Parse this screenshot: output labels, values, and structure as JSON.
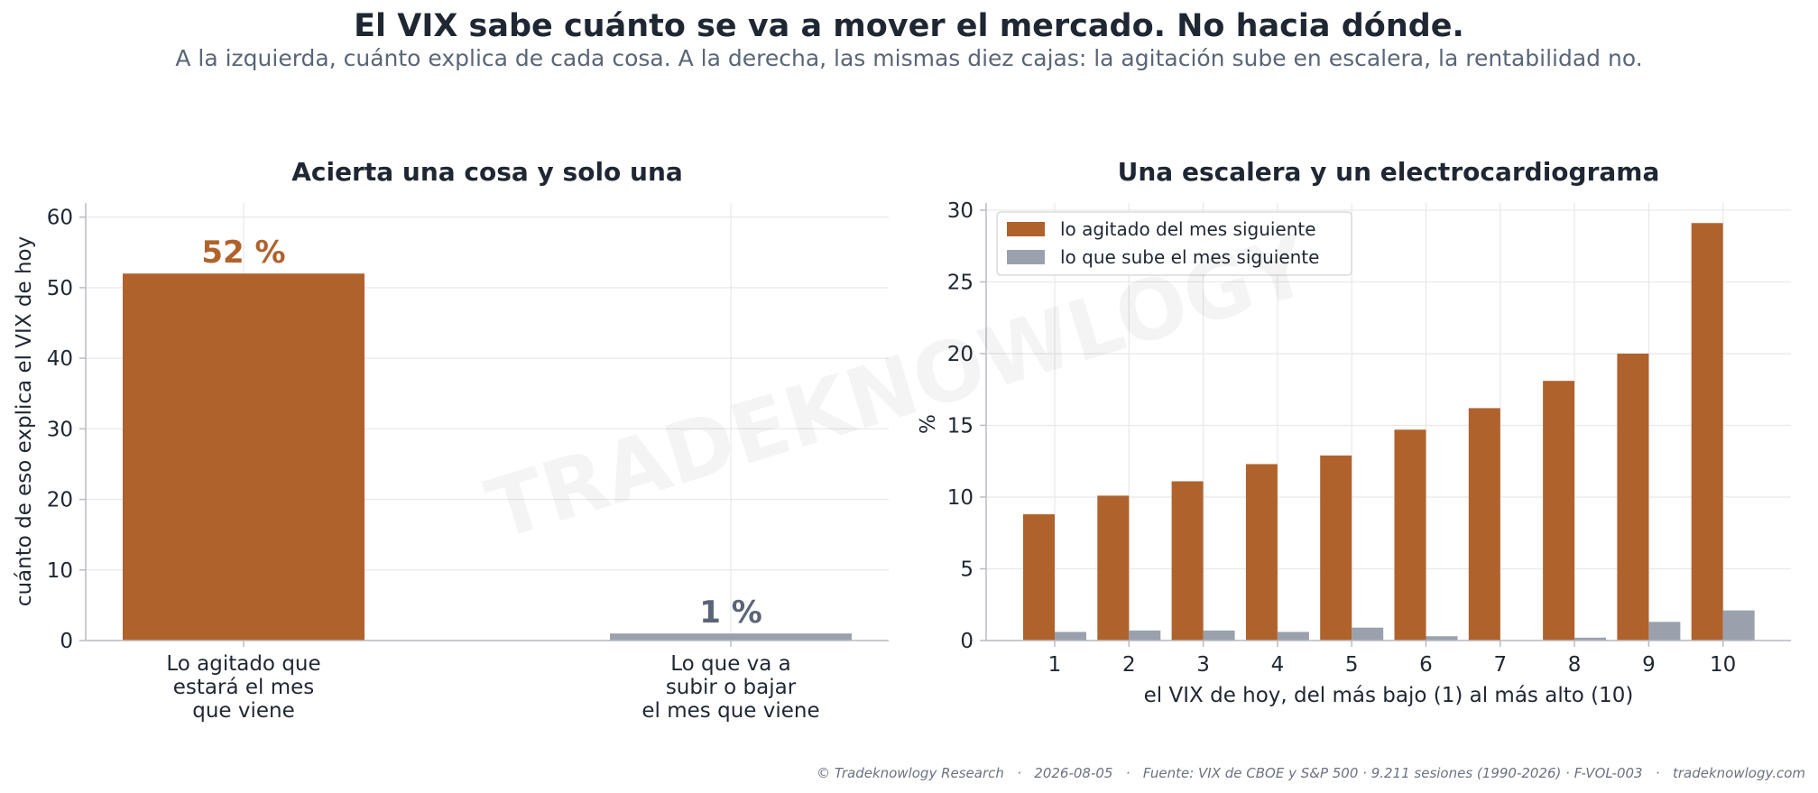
{
  "header": {
    "title": "El VIX sabe cuánto se va a mover el mercado. No hacia dónde.",
    "subtitle": "A la izquierda, cuánto explica de cada cosa. A la derecha, las mismas diez cajas: la agitación sube en escalera, la rentabilidad no."
  },
  "watermark": "TRADEKNOWLOGY",
  "footer": "© Tradeknowlogy Research   ·   2026-08-05   ·   Fuente: VIX de CBOE y S&P 500 · 9.211 sesiones (1990-2026) · F-VOL-003   ·   tradeknowlogy.com",
  "colors": {
    "volatility": "#b0622d",
    "returns": "#9aa1ac",
    "return_label": "#5a6577",
    "grid": "#e8e8e8",
    "axis": "#b8bcc4",
    "text": "#1f2733"
  },
  "chart_data": [
    {
      "type": "bar",
      "title": "Acierta una cosa y solo una",
      "xlabel": "",
      "ylabel": "cuánto de eso explica el VIX de hoy",
      "ylim": [
        0,
        62
      ],
      "yticks": [
        0,
        10,
        20,
        30,
        40,
        50,
        60
      ],
      "grid": true,
      "categories": [
        [
          "Lo agitado que",
          "estará el mes",
          "que viene"
        ],
        [
          "Lo que va a",
          "subir o bajar",
          "el mes que viene"
        ]
      ],
      "values": [
        52,
        1
      ],
      "data_labels": [
        "52 %",
        "1 %"
      ]
    },
    {
      "type": "bar",
      "title": "Una escalera y un electrocardiograma",
      "xlabel": "el VIX de hoy, del más bajo (1) al más alto (10)",
      "ylabel": "%",
      "ylim": [
        0,
        30.5
      ],
      "yticks": [
        0,
        5,
        10,
        15,
        20,
        25,
        30
      ],
      "grid": true,
      "legend": "top-left",
      "categories": [
        "1",
        "2",
        "3",
        "4",
        "5",
        "6",
        "7",
        "8",
        "9",
        "10"
      ],
      "series": [
        {
          "name": "lo agitado del mes siguiente",
          "values": [
            8.8,
            10.1,
            11.1,
            12.3,
            12.9,
            14.7,
            16.2,
            18.1,
            20.0,
            29.1
          ]
        },
        {
          "name": "lo que sube el mes siguiente",
          "values": [
            0.6,
            0.7,
            0.7,
            0.6,
            0.9,
            0.3,
            0.0,
            0.2,
            1.3,
            2.1
          ]
        }
      ]
    }
  ]
}
